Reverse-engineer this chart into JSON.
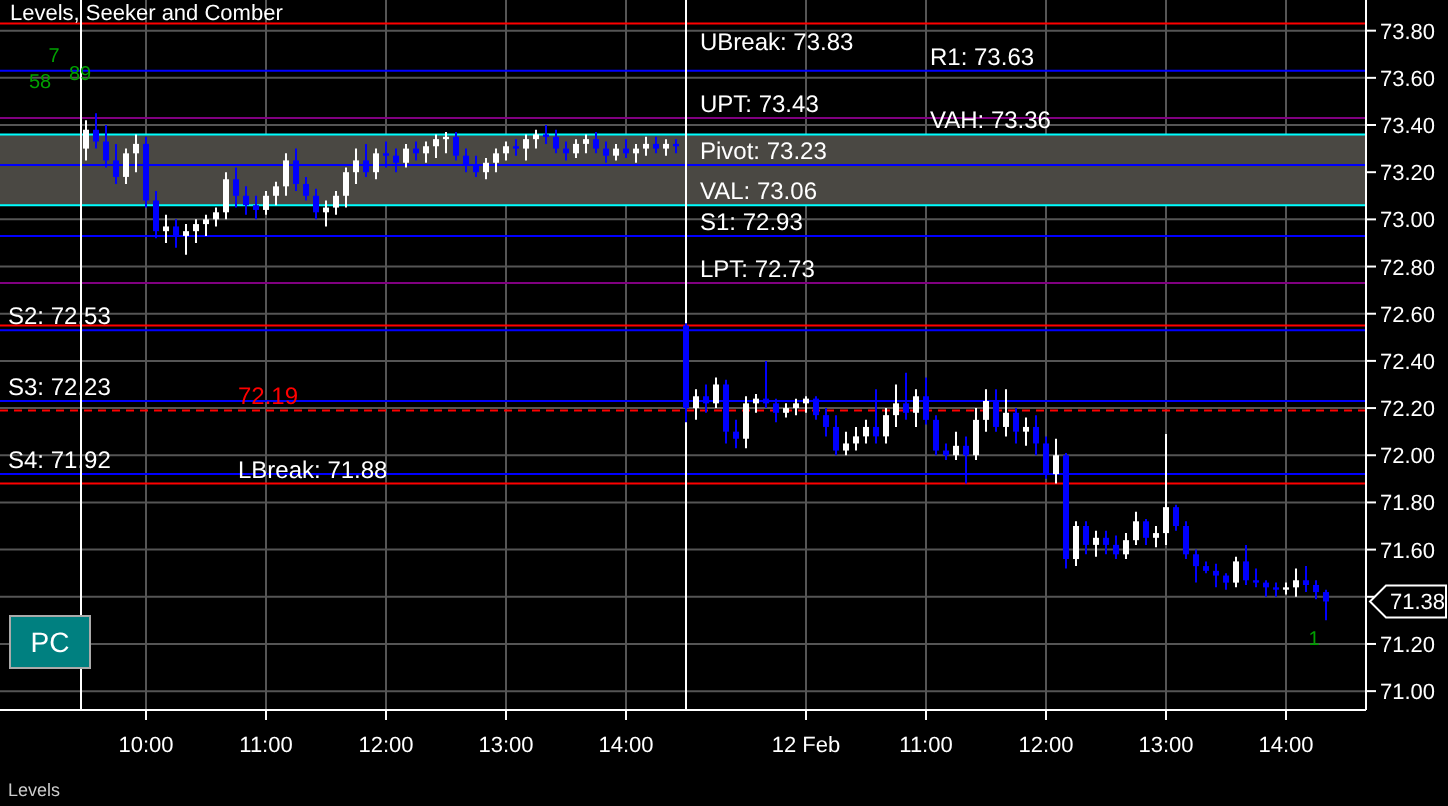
{
  "chart_data": {
    "type": "candlestick",
    "title": "Levels, Seeker and Comber",
    "categories": [
      null,
      null,
      null,
      null,
      null,
      null,
      "10:00",
      null,
      null,
      null,
      null,
      null,
      null,
      null,
      null,
      null,
      null,
      null,
      "11:00",
      null,
      null,
      null,
      null,
      null,
      null,
      null,
      null,
      null,
      null,
      null,
      "12:00",
      null,
      null,
      null,
      null,
      null,
      null,
      null,
      null,
      null,
      null,
      null,
      "13:00",
      null,
      null,
      null,
      null,
      null,
      null,
      null,
      null,
      null,
      null,
      null,
      "14:00",
      null,
      null,
      null,
      null,
      null,
      null,
      null,
      null,
      null,
      null,
      null,
      null,
      null,
      null,
      null,
      null,
      null,
      "12 Feb",
      null,
      null,
      null,
      null,
      null,
      null,
      null,
      null,
      null,
      null,
      null,
      "11:00",
      null,
      null,
      null,
      null,
      null,
      null,
      null,
      null,
      null,
      null,
      null,
      "12:00",
      null,
      null,
      null,
      null,
      null,
      null,
      null,
      null,
      null,
      null,
      null,
      "13:00",
      null,
      null,
      null,
      null,
      null,
      null,
      null,
      null,
      null,
      null,
      null,
      "14:00",
      null,
      null,
      null,
      null
    ],
    "ohlc": [
      [
        73.3,
        73.42,
        73.25,
        73.38
      ],
      [
        73.38,
        73.45,
        73.3,
        73.33
      ],
      [
        73.33,
        73.4,
        73.22,
        73.25
      ],
      [
        73.25,
        73.32,
        73.15,
        73.18
      ],
      [
        73.18,
        73.3,
        73.15,
        73.28
      ],
      [
        73.28,
        73.36,
        73.2,
        73.32
      ],
      [
        73.32,
        73.35,
        73.05,
        73.08
      ],
      [
        73.08,
        73.12,
        72.92,
        72.95
      ],
      [
        72.95,
        73.02,
        72.9,
        72.97
      ],
      [
        72.97,
        73.0,
        72.88,
        72.93
      ],
      [
        72.93,
        72.98,
        72.85,
        72.95
      ],
      [
        72.95,
        73.0,
        72.9,
        72.98
      ],
      [
        72.98,
        73.02,
        72.93,
        73.0
      ],
      [
        73.0,
        73.05,
        72.97,
        73.03
      ],
      [
        73.03,
        73.2,
        73.0,
        73.17
      ],
      [
        73.17,
        73.22,
        73.05,
        73.1
      ],
      [
        73.1,
        73.14,
        73.02,
        73.06
      ],
      [
        73.06,
        73.1,
        73.0,
        73.04
      ],
      [
        73.04,
        73.12,
        73.02,
        73.1
      ],
      [
        73.1,
        73.16,
        73.06,
        73.14
      ],
      [
        73.14,
        73.28,
        73.1,
        73.25
      ],
      [
        73.25,
        73.3,
        73.12,
        73.15
      ],
      [
        73.15,
        73.18,
        73.08,
        73.1
      ],
      [
        73.1,
        73.13,
        73.0,
        73.03
      ],
      [
        73.03,
        73.08,
        72.97,
        73.05
      ],
      [
        73.05,
        73.12,
        73.02,
        73.1
      ],
      [
        73.1,
        73.22,
        73.05,
        73.2
      ],
      [
        73.2,
        73.3,
        73.15,
        73.25
      ],
      [
        73.25,
        73.32,
        73.18,
        73.2
      ],
      [
        73.2,
        73.3,
        73.17,
        73.28
      ],
      [
        73.28,
        73.33,
        73.22,
        73.27
      ],
      [
        73.27,
        73.3,
        73.2,
        73.24
      ],
      [
        73.24,
        73.32,
        73.22,
        73.3
      ],
      [
        73.3,
        73.33,
        73.25,
        73.28
      ],
      [
        73.28,
        73.33,
        73.24,
        73.31
      ],
      [
        73.31,
        73.36,
        73.26,
        73.34
      ],
      [
        73.34,
        73.37,
        73.28,
        73.35
      ],
      [
        73.35,
        73.37,
        73.25,
        73.27
      ],
      [
        73.27,
        73.3,
        73.2,
        73.23
      ],
      [
        73.23,
        73.27,
        73.18,
        73.2
      ],
      [
        73.2,
        73.26,
        73.17,
        73.24
      ],
      [
        73.24,
        73.3,
        73.2,
        73.28
      ],
      [
        73.28,
        73.33,
        73.25,
        73.31
      ],
      [
        73.31,
        73.34,
        73.27,
        73.3
      ],
      [
        73.3,
        73.36,
        73.25,
        73.34
      ],
      [
        73.34,
        73.38,
        73.3,
        73.36
      ],
      [
        73.36,
        73.4,
        73.32,
        73.35
      ],
      [
        73.35,
        73.38,
        73.28,
        73.3
      ],
      [
        73.3,
        73.33,
        73.25,
        73.28
      ],
      [
        73.28,
        73.34,
        73.26,
        73.32
      ],
      [
        73.32,
        73.36,
        73.28,
        73.34
      ],
      [
        73.34,
        73.37,
        73.28,
        73.3
      ],
      [
        73.3,
        73.33,
        73.24,
        73.27
      ],
      [
        73.27,
        73.32,
        73.25,
        73.3
      ],
      [
        73.3,
        73.34,
        73.26,
        73.28
      ],
      [
        73.28,
        73.32,
        73.24,
        73.3
      ],
      [
        73.3,
        73.35,
        73.27,
        73.32
      ],
      [
        73.32,
        73.35,
        73.28,
        73.3
      ],
      [
        73.3,
        73.34,
        73.27,
        73.32
      ],
      [
        73.32,
        73.34,
        73.28,
        73.31
      ],
      [
        72.55,
        72.56,
        72.14,
        72.2
      ],
      [
        72.2,
        72.28,
        72.15,
        72.25
      ],
      [
        72.25,
        72.3,
        72.18,
        72.22
      ],
      [
        72.22,
        72.33,
        72.2,
        72.3
      ],
      [
        72.3,
        72.32,
        72.05,
        72.1
      ],
      [
        72.1,
        72.15,
        72.03,
        72.07
      ],
      [
        72.07,
        72.25,
        72.03,
        72.22
      ],
      [
        72.22,
        72.26,
        72.18,
        72.24
      ],
      [
        72.24,
        72.4,
        72.2,
        72.22
      ],
      [
        72.22,
        72.24,
        72.14,
        72.18
      ],
      [
        72.18,
        72.22,
        72.16,
        72.2
      ],
      [
        72.2,
        72.24,
        72.17,
        72.22
      ],
      [
        72.22,
        72.25,
        72.18,
        72.24
      ],
      [
        72.24,
        72.25,
        72.15,
        72.17
      ],
      [
        72.17,
        72.2,
        72.08,
        72.12
      ],
      [
        72.12,
        72.17,
        72.0,
        72.02
      ],
      [
        72.02,
        72.1,
        72.0,
        72.05
      ],
      [
        72.05,
        72.12,
        72.02,
        72.08
      ],
      [
        72.08,
        72.15,
        72.05,
        72.12
      ],
      [
        72.12,
        72.28,
        72.05,
        72.08
      ],
      [
        72.08,
        72.2,
        72.05,
        72.17
      ],
      [
        72.17,
        72.3,
        72.12,
        72.22
      ],
      [
        72.22,
        72.35,
        72.15,
        72.18
      ],
      [
        72.18,
        72.28,
        72.12,
        72.25
      ],
      [
        72.25,
        72.33,
        72.13,
        72.15
      ],
      [
        72.15,
        72.17,
        72.0,
        72.02
      ],
      [
        72.02,
        72.05,
        71.98,
        72.0
      ],
      [
        72.0,
        72.1,
        71.98,
        72.04
      ],
      [
        72.04,
        72.08,
        71.88,
        72.0
      ],
      [
        72.0,
        72.2,
        71.98,
        72.15
      ],
      [
        72.15,
        72.28,
        72.1,
        72.23
      ],
      [
        72.23,
        72.28,
        72.1,
        72.12
      ],
      [
        72.12,
        72.28,
        72.08,
        72.18
      ],
      [
        72.18,
        72.2,
        72.05,
        72.1
      ],
      [
        72.1,
        72.16,
        72.04,
        72.12
      ],
      [
        72.12,
        72.17,
        72.0,
        72.05
      ],
      [
        72.05,
        72.08,
        71.9,
        71.92
      ],
      [
        71.92,
        72.07,
        71.88,
        72.0
      ],
      [
        72.0,
        72.01,
        71.52,
        71.56
      ],
      [
        71.56,
        71.72,
        71.53,
        71.7
      ],
      [
        71.7,
        71.72,
        71.58,
        71.62
      ],
      [
        71.62,
        71.68,
        71.57,
        71.65
      ],
      [
        71.65,
        71.68,
        71.58,
        71.62
      ],
      [
        71.62,
        71.66,
        71.56,
        71.58
      ],
      [
        71.58,
        71.67,
        71.56,
        71.64
      ],
      [
        71.64,
        71.76,
        71.62,
        71.72
      ],
      [
        71.72,
        71.73,
        71.62,
        71.65
      ],
      [
        71.65,
        71.7,
        71.61,
        71.67
      ],
      [
        71.67,
        72.09,
        71.62,
        71.78
      ],
      [
        71.78,
        71.79,
        71.68,
        71.7
      ],
      [
        71.7,
        71.72,
        71.56,
        71.58
      ],
      [
        71.58,
        71.6,
        71.46,
        71.53
      ],
      [
        71.53,
        71.55,
        71.5,
        71.51
      ],
      [
        71.51,
        71.54,
        71.44,
        71.49
      ],
      [
        71.49,
        71.5,
        71.43,
        71.46
      ],
      [
        71.46,
        71.57,
        71.44,
        71.55
      ],
      [
        71.55,
        71.62,
        71.45,
        71.47
      ],
      [
        71.47,
        71.52,
        71.44,
        71.46
      ],
      [
        71.46,
        71.47,
        71.4,
        71.44
      ],
      [
        71.44,
        71.46,
        71.4,
        71.43
      ],
      [
        71.43,
        71.46,
        71.41,
        71.44
      ],
      [
        71.44,
        71.52,
        71.4,
        71.47
      ],
      [
        71.47,
        71.53,
        71.42,
        71.45
      ],
      [
        71.45,
        71.47,
        71.39,
        71.42
      ],
      [
        71.42,
        71.43,
        71.3,
        71.38
      ]
    ],
    "colors": [
      "#ffffff",
      "#0000ff",
      "#0000ff",
      "#0000ff",
      "#ffffff",
      "#ffffff",
      "#0000ff",
      "#0000ff",
      "#ffffff",
      "#0000ff",
      "#ffffff",
      "#ffffff",
      "#ffffff",
      "#ffffff",
      "#ffffff",
      "#0000ff",
      "#0000ff",
      "#0000ff",
      "#ffffff",
      "#ffffff",
      "#ffffff",
      "#0000ff",
      "#0000ff",
      "#0000ff",
      "#ffffff",
      "#ffffff",
      "#ffffff",
      "#ffffff",
      "#0000ff",
      "#ffffff",
      "#0000ff",
      "#0000ff",
      "#ffffff",
      "#0000ff",
      "#ffffff",
      "#ffffff",
      "#ffffff",
      "#0000ff",
      "#0000ff",
      "#0000ff",
      "#ffffff",
      "#ffffff",
      "#ffffff",
      "#0000ff",
      "#ffffff",
      "#ffffff",
      "#0000ff",
      "#0000ff",
      "#0000ff",
      "#ffffff",
      "#ffffff",
      "#0000ff",
      "#0000ff",
      "#ffffff",
      "#0000ff",
      "#ffffff",
      "#ffffff",
      "#0000ff",
      "#ffffff",
      "#0000ff",
      "#0000ff",
      "#ffffff",
      "#0000ff",
      "#ffffff",
      "#0000ff",
      "#0000ff",
      "#ffffff",
      "#ffffff",
      "#0000ff",
      "#0000ff",
      "#ffffff",
      "#ffffff",
      "#ffffff",
      "#0000ff",
      "#0000ff",
      "#0000ff",
      "#ffffff",
      "#ffffff",
      "#ffffff",
      "#0000ff",
      "#ffffff",
      "#ffffff",
      "#0000ff",
      "#ffffff",
      "#0000ff",
      "#0000ff",
      "#0000ff",
      "#ffffff",
      "#0000ff",
      "#ffffff",
      "#ffffff",
      "#0000ff",
      "#ffffff",
      "#0000ff",
      "#ffffff",
      "#0000ff",
      "#0000ff",
      "#ffffff",
      "#0000ff",
      "#ffffff",
      "#0000ff",
      "#ffffff",
      "#0000ff",
      "#0000ff",
      "#ffffff",
      "#ffffff",
      "#0000ff",
      "#ffffff",
      "#ffffff",
      "#0000ff",
      "#0000ff",
      "#0000ff",
      "#0000ff",
      "#0000ff",
      "#0000ff",
      "#ffffff",
      "#0000ff",
      "#0000ff",
      "#0000ff",
      "#0000ff",
      "#ffffff",
      "#ffffff",
      "#0000ff",
      "#0000ff",
      "#0000ff"
    ],
    "ylim": [
      70.92,
      73.93
    ],
    "yticks": [
      {
        "value": 71,
        "label": "71.00"
      },
      {
        "value": 71.2,
        "label": "71.20"
      },
      {
        "value": 71.4,
        "label": null
      },
      {
        "value": 71.6,
        "label": "71.60"
      },
      {
        "value": 71.8,
        "label": "71.80"
      },
      {
        "value": 72,
        "label": "72.00"
      },
      {
        "value": 72.2,
        "label": "72.20"
      },
      {
        "value": 72.4,
        "label": "72.40"
      },
      {
        "value": 72.6,
        "label": "72.60"
      },
      {
        "value": 72.8,
        "label": "72.80"
      },
      {
        "value": 73,
        "label": "73.00"
      },
      {
        "value": 73.2,
        "label": "73.20"
      },
      {
        "value": 73.4,
        "label": "73.40"
      },
      {
        "value": 73.6,
        "label": "73.60"
      },
      {
        "value": 73.8,
        "label": "73.80"
      }
    ],
    "grid": true,
    "bands": [
      {
        "axis": "y",
        "from": 73.06,
        "to": 73.36,
        "color": "#4a4843"
      }
    ],
    "ref_lines": [
      {
        "axis": "y",
        "value": 73.83,
        "label": "UBreak: 73.83",
        "color": "#ff0000"
      },
      {
        "axis": "y",
        "value": 73.63,
        "label": "R1: 73.63",
        "color": "#0000ff"
      },
      {
        "axis": "y",
        "value": 73.43,
        "label": "UPT: 73.43",
        "color": "#800080"
      },
      {
        "axis": "y",
        "value": 73.36,
        "label": "VAH: 73.36",
        "color": "#00ffff"
      },
      {
        "axis": "y",
        "value": 73.23,
        "label": "Pivot: 73.23",
        "color": "#0000ff"
      },
      {
        "axis": "y",
        "value": 73.06,
        "label": "VAL: 73.06",
        "color": "#00ffff"
      },
      {
        "axis": "y",
        "value": 72.93,
        "label": "S1: 72.93",
        "color": "#0000ff"
      },
      {
        "axis": "y",
        "value": 72.73,
        "label": "LPT: 72.73",
        "color": "#800080"
      },
      {
        "axis": "y",
        "value": 72.55,
        "color": "#ff0000"
      },
      {
        "axis": "y",
        "value": 72.53,
        "label": "S2: 72.53",
        "color": "#0000ff"
      },
      {
        "axis": "y",
        "value": 72.23,
        "label": "S3: 72.23",
        "color": "#0000ff"
      },
      {
        "axis": "y",
        "value": 72.19,
        "label": "72.19",
        "color": "#ff0000",
        "line_style": "dashed"
      },
      {
        "axis": "y",
        "value": 71.92,
        "label": "S4: 71.92",
        "color": "#0000ff"
      },
      {
        "axis": "y",
        "value": 71.88,
        "label": "LBreak: 71.88",
        "color": "#ff0000"
      }
    ],
    "annotations": [
      "58",
      "7",
      "89",
      "1",
      "71.38",
      "PC",
      "Levels"
    ]
  }
}
